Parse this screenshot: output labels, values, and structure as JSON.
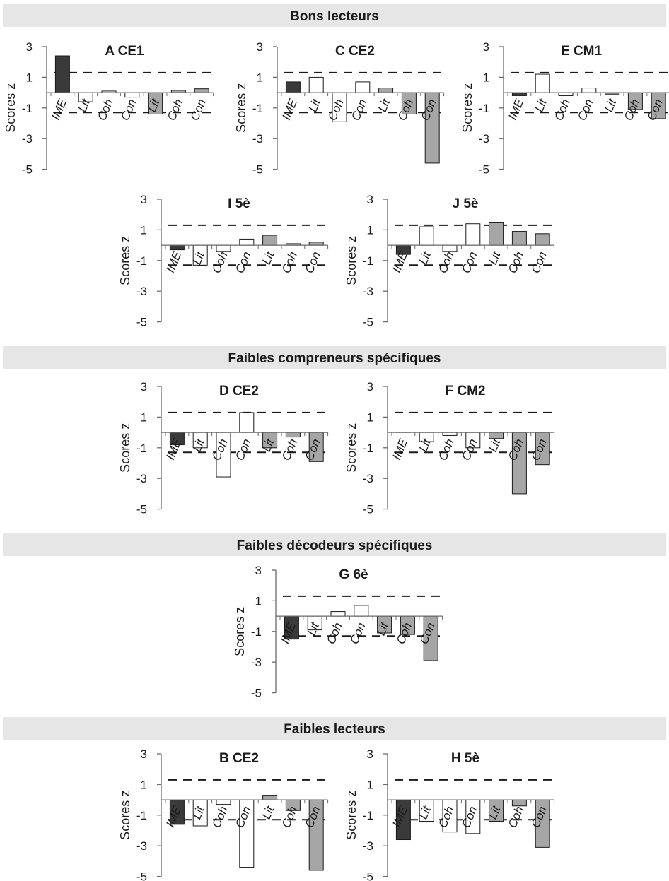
{
  "sections": [
    {
      "title": "Bons lecteurs"
    },
    {
      "title": "Faibles compreneurs spécifiques"
    },
    {
      "title": "Faibles décodeurs spécifiques"
    },
    {
      "title": "Faibles lecteurs"
    }
  ],
  "colors": {
    "band": "#e6e6e6",
    "ime": "#3a3a3a",
    "group2": "#ffffff",
    "group3": "#a6a6a6",
    "stroke": "#1a1a1a"
  },
  "categories": [
    "IME",
    "Lit",
    "Coh",
    "Con",
    "Lit",
    "Coh",
    "Con"
  ],
  "threshold": 1.3,
  "chart_data": [
    {
      "type": "bar",
      "title": "A CE1",
      "ylabel": "Scores z",
      "yticks": [
        "3",
        "1",
        "-1",
        "-3",
        "-5"
      ],
      "ylim": [
        -5,
        3
      ],
      "values": [
        2.4,
        -0.6,
        0.1,
        -0.3,
        -1.4,
        0.15,
        0.25
      ]
    },
    {
      "type": "bar",
      "title": "C CE2",
      "ylabel": "Scores z",
      "yticks": [
        "3",
        "1",
        "-1",
        "-3",
        "-5"
      ],
      "ylim": [
        -5,
        3
      ],
      "values": [
        0.7,
        1.0,
        -1.9,
        0.7,
        0.3,
        -1.4,
        -4.6
      ]
    },
    {
      "type": "bar",
      "title": "E CM1",
      "ylabel": "Scores z",
      "yticks": [
        "3",
        "1",
        "-1",
        "-3",
        "-5"
      ],
      "ylim": [
        -5,
        3
      ],
      "values": [
        -0.2,
        1.2,
        -0.2,
        0.3,
        -0.1,
        -1.1,
        -1.7
      ]
    },
    {
      "type": "bar",
      "title": "I 5è",
      "ylabel": "Scores z",
      "yticks": [
        "3",
        "1",
        "-1",
        "-3",
        "-5"
      ],
      "ylim": [
        -5,
        3
      ],
      "values": [
        -0.3,
        -1.3,
        -0.4,
        0.4,
        0.65,
        0.1,
        0.2
      ]
    },
    {
      "type": "bar",
      "title": "J 5è",
      "ylabel": "Scores z",
      "yticks": [
        "3",
        "1",
        "-1",
        "-3",
        "-5"
      ],
      "ylim": [
        -5,
        3
      ],
      "values": [
        -0.6,
        1.2,
        -0.4,
        1.4,
        1.5,
        0.9,
        0.75
      ]
    },
    {
      "type": "bar",
      "title": "D CE2",
      "ylabel": "Scores z",
      "yticks": [
        "3",
        "1",
        "-1",
        "-3",
        "-5"
      ],
      "ylim": [
        -5,
        3
      ],
      "values": [
        -0.8,
        -1.0,
        -2.9,
        1.3,
        -1.0,
        -0.3,
        -1.9
      ]
    },
    {
      "type": "bar",
      "title": "F CM2",
      "ylabel": "Scores z",
      "yticks": [
        "3",
        "1",
        "-1",
        "-3",
        "-5"
      ],
      "ylim": [
        -5,
        3
      ],
      "values": [
        0,
        -0.6,
        -0.2,
        -1.0,
        -0.4,
        -4.0,
        -2.1
      ]
    },
    {
      "type": "bar",
      "title": "G 6è",
      "ylabel": "Scores z",
      "yticks": [
        "3",
        "1",
        "-1",
        "-3",
        "-5"
      ],
      "ylim": [
        -5,
        3
      ],
      "values": [
        -1.5,
        -0.9,
        0.3,
        0.7,
        -1.1,
        -1.2,
        -2.9
      ]
    },
    {
      "type": "bar",
      "title": "B CE2",
      "ylabel": "Scores z",
      "yticks": [
        "3",
        "1",
        "-1",
        "-3",
        "-5"
      ],
      "ylim": [
        -5,
        3
      ],
      "values": [
        -1.6,
        -1.7,
        -0.3,
        -4.4,
        0.3,
        -0.7,
        -4.6
      ]
    },
    {
      "type": "bar",
      "title": "H 5è",
      "ylabel": "Scores z",
      "yticks": [
        "3",
        "1",
        "-1",
        "-3",
        "-5"
      ],
      "ylim": [
        -5,
        3
      ],
      "values": [
        -2.6,
        -1.4,
        -2.1,
        -2.2,
        -1.4,
        -0.4,
        -3.1
      ]
    }
  ]
}
